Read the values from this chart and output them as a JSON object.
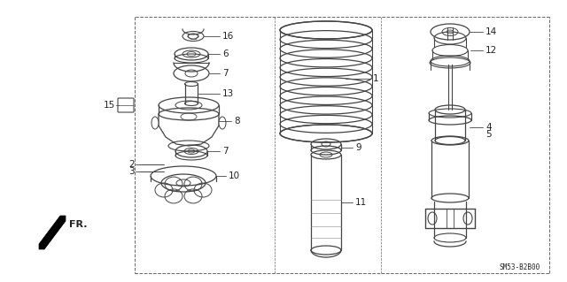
{
  "bg_color": "#ffffff",
  "border_color": "#666666",
  "line_color": "#444444",
  "text_color": "#222222",
  "diagram_code": "SM53-B2B00",
  "fr_label": "FR.",
  "figw": 6.4,
  "figh": 3.19,
  "dpi": 100
}
